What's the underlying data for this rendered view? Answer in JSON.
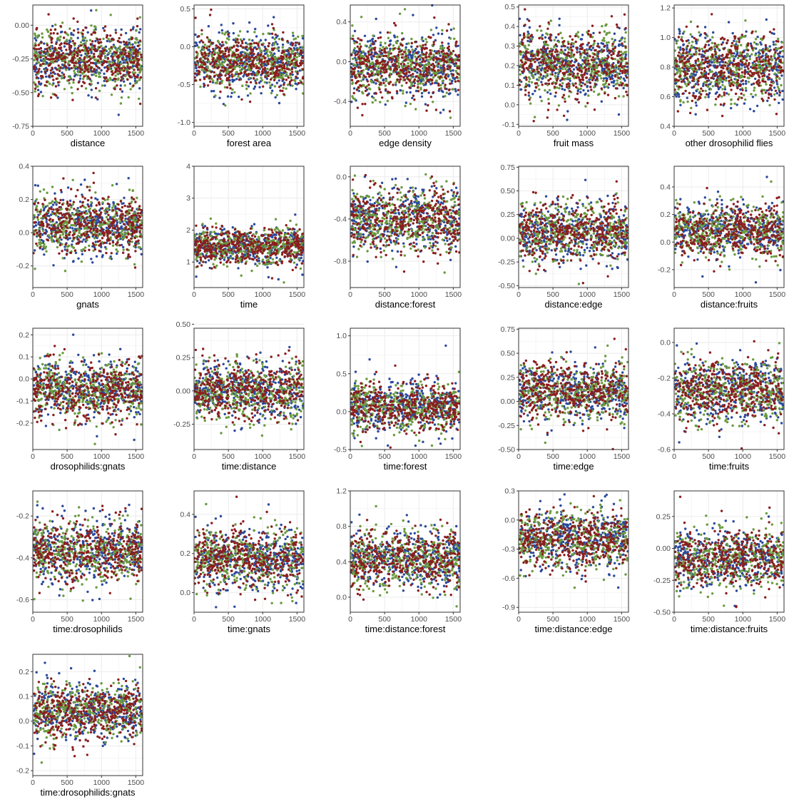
{
  "colors": {
    "chain1": "#2b4a9c",
    "chain2": "#6b9a3e",
    "chain3": "#8b1e1e",
    "panel_border": "#333333",
    "grid": "#ebebeb",
    "tick_text": "#4d4d4d"
  },
  "chart_data": [
    {
      "type": "scatter",
      "xlabel": "distance",
      "xlim": [
        0,
        1600
      ],
      "xticks": [
        0,
        500,
        1000,
        1500
      ],
      "ylim": [
        -0.75,
        0.15
      ],
      "yticks": [
        "-0.75",
        "-0.50",
        "-0.25",
        "0.00"
      ],
      "center": -0.25,
      "spread": 0.11,
      "series": [
        {
          "color": "chain1"
        },
        {
          "color": "chain2"
        },
        {
          "color": "chain3"
        }
      ]
    },
    {
      "type": "scatter",
      "xlabel": "forest area",
      "xlim": [
        0,
        1600
      ],
      "xticks": [
        0,
        500,
        1000,
        1500
      ],
      "ylim": [
        -1.05,
        0.55
      ],
      "yticks": [
        "-1.0",
        "-0.5",
        "0.0",
        "0.5"
      ],
      "center": -0.2,
      "spread": 0.18,
      "series": [
        {
          "color": "chain1"
        },
        {
          "color": "chain2"
        },
        {
          "color": "chain3"
        }
      ]
    },
    {
      "type": "scatter",
      "xlabel": "edge density",
      "xlim": [
        0,
        1600
      ],
      "xticks": [
        0,
        500,
        1000,
        1500
      ],
      "ylim": [
        -0.65,
        0.57
      ],
      "yticks": [
        "-0.4",
        "0.0",
        "0.4"
      ],
      "center": -0.05,
      "spread": 0.15,
      "series": [
        {
          "color": "chain1"
        },
        {
          "color": "chain2"
        },
        {
          "color": "chain3"
        }
      ]
    },
    {
      "type": "scatter",
      "xlabel": "fruit mass",
      "xlim": [
        0,
        1600
      ],
      "xticks": [
        0,
        500,
        1000,
        1500
      ],
      "ylim": [
        -0.11,
        0.51
      ],
      "yticks": [
        "-0.1",
        "0.0",
        "0.1",
        "0.2",
        "0.3",
        "0.4",
        "0.5"
      ],
      "center": 0.21,
      "spread": 0.085,
      "series": [
        {
          "color": "chain1"
        },
        {
          "color": "chain2"
        },
        {
          "color": "chain3"
        }
      ]
    },
    {
      "type": "scatter",
      "xlabel": "other drosophilid flies",
      "xlim": [
        0,
        1600
      ],
      "xticks": [
        0,
        500,
        1000,
        1500
      ],
      "ylim": [
        0.4,
        1.22
      ],
      "yticks": [
        "0.4",
        "0.6",
        "0.8",
        "1.0",
        "1.2"
      ],
      "center": 0.8,
      "spread": 0.11,
      "series": [
        {
          "color": "chain1"
        },
        {
          "color": "chain2"
        },
        {
          "color": "chain3"
        }
      ]
    },
    {
      "type": "scatter",
      "xlabel": "gnats",
      "xlim": [
        0,
        1600
      ],
      "xticks": [
        0,
        500,
        1000,
        1500
      ],
      "ylim": [
        -0.33,
        0.4
      ],
      "yticks": [
        "-0.2",
        "0.0",
        "0.2",
        "0.4"
      ],
      "center": 0.04,
      "spread": 0.085,
      "series": [
        {
          "color": "chain1"
        },
        {
          "color": "chain2"
        },
        {
          "color": "chain3"
        }
      ]
    },
    {
      "type": "scatter",
      "xlabel": "time",
      "xlim": [
        0,
        1600
      ],
      "xticks": [
        0,
        500,
        1000,
        1500
      ],
      "ylim": [
        0.2,
        4.0
      ],
      "yticks": [
        "1",
        "2",
        "3",
        "4"
      ],
      "center": 1.5,
      "spread": 0.28,
      "series": [
        {
          "color": "chain1"
        },
        {
          "color": "chain2"
        },
        {
          "color": "chain3"
        }
      ]
    },
    {
      "type": "scatter",
      "xlabel": "distance:forest",
      "xlim": [
        0,
        1600
      ],
      "xticks": [
        0,
        500,
        1000,
        1500
      ],
      "ylim": [
        -1.05,
        0.1
      ],
      "yticks": [
        "-0.8",
        "-0.4",
        "0.0"
      ],
      "center": -0.4,
      "spread": 0.15,
      "series": [
        {
          "color": "chain1"
        },
        {
          "color": "chain2"
        },
        {
          "color": "chain3"
        }
      ]
    },
    {
      "type": "scatter",
      "xlabel": "distance:edge",
      "xlim": [
        0,
        1600
      ],
      "xticks": [
        0,
        500,
        1000,
        1500
      ],
      "ylim": [
        -0.52,
        0.76
      ],
      "yticks": [
        "-0.50",
        "-0.25",
        "0.00",
        "0.25",
        "0.50",
        "0.75"
      ],
      "center": 0.06,
      "spread": 0.15,
      "series": [
        {
          "color": "chain1"
        },
        {
          "color": "chain2"
        },
        {
          "color": "chain3"
        }
      ]
    },
    {
      "type": "scatter",
      "xlabel": "distance:fruits",
      "xlim": [
        0,
        1600
      ],
      "xticks": [
        0,
        500,
        1000,
        1500
      ],
      "ylim": [
        -0.33,
        0.55
      ],
      "yticks": [
        "-0.2",
        "0.0",
        "0.2",
        "0.4"
      ],
      "center": 0.08,
      "spread": 0.095,
      "series": [
        {
          "color": "chain1"
        },
        {
          "color": "chain2"
        },
        {
          "color": "chain3"
        }
      ]
    },
    {
      "type": "scatter",
      "xlabel": "drosophilids:gnats",
      "xlim": [
        0,
        1600
      ],
      "xticks": [
        0,
        500,
        1000,
        1500
      ],
      "ylim": [
        -0.32,
        0.23
      ],
      "yticks": [
        "-0.2",
        "-0.1",
        "0.0",
        "0.1",
        "0.2"
      ],
      "center": -0.05,
      "spread": 0.065,
      "series": [
        {
          "color": "chain1"
        },
        {
          "color": "chain2"
        },
        {
          "color": "chain3"
        }
      ]
    },
    {
      "type": "scatter",
      "xlabel": "time:distance",
      "xlim": [
        0,
        1600
      ],
      "xticks": [
        0,
        500,
        1000,
        1500
      ],
      "ylim": [
        -0.44,
        0.47
      ],
      "yticks": [
        "-0.25",
        "0.00",
        "0.25",
        "0.50"
      ],
      "center": 0.0,
      "spread": 0.11,
      "series": [
        {
          "color": "chain1"
        },
        {
          "color": "chain2"
        },
        {
          "color": "chain3"
        }
      ]
    },
    {
      "type": "scatter",
      "xlabel": "time:forest",
      "xlim": [
        0,
        1600
      ],
      "xticks": [
        0,
        500,
        1000,
        1500
      ],
      "ylim": [
        -0.5,
        1.1
      ],
      "yticks": [
        "-0.5",
        "0.0",
        "0.5",
        "1.0"
      ],
      "center": 0.05,
      "spread": 0.16,
      "series": [
        {
          "color": "chain1"
        },
        {
          "color": "chain2"
        },
        {
          "color": "chain3"
        }
      ]
    },
    {
      "type": "scatter",
      "xlabel": "time:edge",
      "xlim": [
        0,
        1600
      ],
      "xticks": [
        0,
        500,
        1000,
        1500
      ],
      "ylim": [
        -0.5,
        0.76
      ],
      "yticks": [
        "-0.50",
        "-0.25",
        "0.00",
        "0.25",
        "0.50",
        "0.75"
      ],
      "center": 0.1,
      "spread": 0.14,
      "series": [
        {
          "color": "chain1"
        },
        {
          "color": "chain2"
        },
        {
          "color": "chain3"
        }
      ]
    },
    {
      "type": "scatter",
      "xlabel": "time:fruits",
      "xlim": [
        0,
        1600
      ],
      "xticks": [
        0,
        500,
        1000,
        1500
      ],
      "ylim": [
        -0.6,
        0.08
      ],
      "yticks": [
        "-0.6",
        "-0.4",
        "-0.2",
        "0.0"
      ],
      "center": -0.27,
      "spread": 0.085,
      "series": [
        {
          "color": "chain1"
        },
        {
          "color": "chain2"
        },
        {
          "color": "chain3"
        }
      ]
    },
    {
      "type": "scatter",
      "xlabel": "time:drosophilids",
      "xlim": [
        0,
        1600
      ],
      "xticks": [
        0,
        500,
        1000,
        1500
      ],
      "ylim": [
        -0.66,
        -0.08
      ],
      "yticks": [
        "-0.6",
        "-0.4",
        "-0.2"
      ],
      "center": -0.37,
      "spread": 0.07,
      "series": [
        {
          "color": "chain1"
        },
        {
          "color": "chain2"
        },
        {
          "color": "chain3"
        }
      ]
    },
    {
      "type": "scatter",
      "xlabel": "time:gnats",
      "xlim": [
        0,
        1600
      ],
      "xticks": [
        0,
        500,
        1000,
        1500
      ],
      "ylim": [
        -0.1,
        0.52
      ],
      "yticks": [
        "0.0",
        "0.2",
        "0.4"
      ],
      "center": 0.17,
      "spread": 0.075,
      "series": [
        {
          "color": "chain1"
        },
        {
          "color": "chain2"
        },
        {
          "color": "chain3"
        }
      ]
    },
    {
      "type": "scatter",
      "xlabel": "time:distance:forest",
      "xlim": [
        0,
        1600
      ],
      "xticks": [
        0,
        500,
        1000,
        1500
      ],
      "ylim": [
        -0.17,
        1.2
      ],
      "yticks": [
        "0.0",
        "0.4",
        "0.8",
        "1.2"
      ],
      "center": 0.42,
      "spread": 0.16,
      "series": [
        {
          "color": "chain1"
        },
        {
          "color": "chain2"
        },
        {
          "color": "chain3"
        }
      ]
    },
    {
      "type": "scatter",
      "xlabel": "time:distance:edge",
      "xlim": [
        0,
        1600
      ],
      "xticks": [
        0,
        500,
        1000,
        1500
      ],
      "ylim": [
        -0.95,
        0.3
      ],
      "yticks": [
        "-0.9",
        "-0.6",
        "-0.3",
        "0.0",
        "0.3"
      ],
      "center": -0.2,
      "spread": 0.15,
      "series": [
        {
          "color": "chain1"
        },
        {
          "color": "chain2"
        },
        {
          "color": "chain3"
        }
      ]
    },
    {
      "type": "scatter",
      "xlabel": "time:distance:fruits",
      "xlim": [
        0,
        1600
      ],
      "xticks": [
        0,
        500,
        1000,
        1500
      ],
      "ylim": [
        -0.5,
        0.45
      ],
      "yticks": [
        "-0.50",
        "-0.25",
        "0.00",
        "0.25"
      ],
      "center": -0.08,
      "spread": 0.11,
      "series": [
        {
          "color": "chain1"
        },
        {
          "color": "chain2"
        },
        {
          "color": "chain3"
        }
      ]
    },
    {
      "type": "scatter",
      "xlabel": "time:drosophilids:gnats",
      "xlim": [
        0,
        1600
      ],
      "xticks": [
        0,
        500,
        1000,
        1500
      ],
      "ylim": [
        -0.22,
        0.27
      ],
      "yticks": [
        "-0.2",
        "-0.1",
        "0.0",
        "0.1",
        "0.2"
      ],
      "center": 0.04,
      "spread": 0.055,
      "series": [
        {
          "color": "chain1"
        },
        {
          "color": "chain2"
        },
        {
          "color": "chain3"
        }
      ]
    }
  ]
}
